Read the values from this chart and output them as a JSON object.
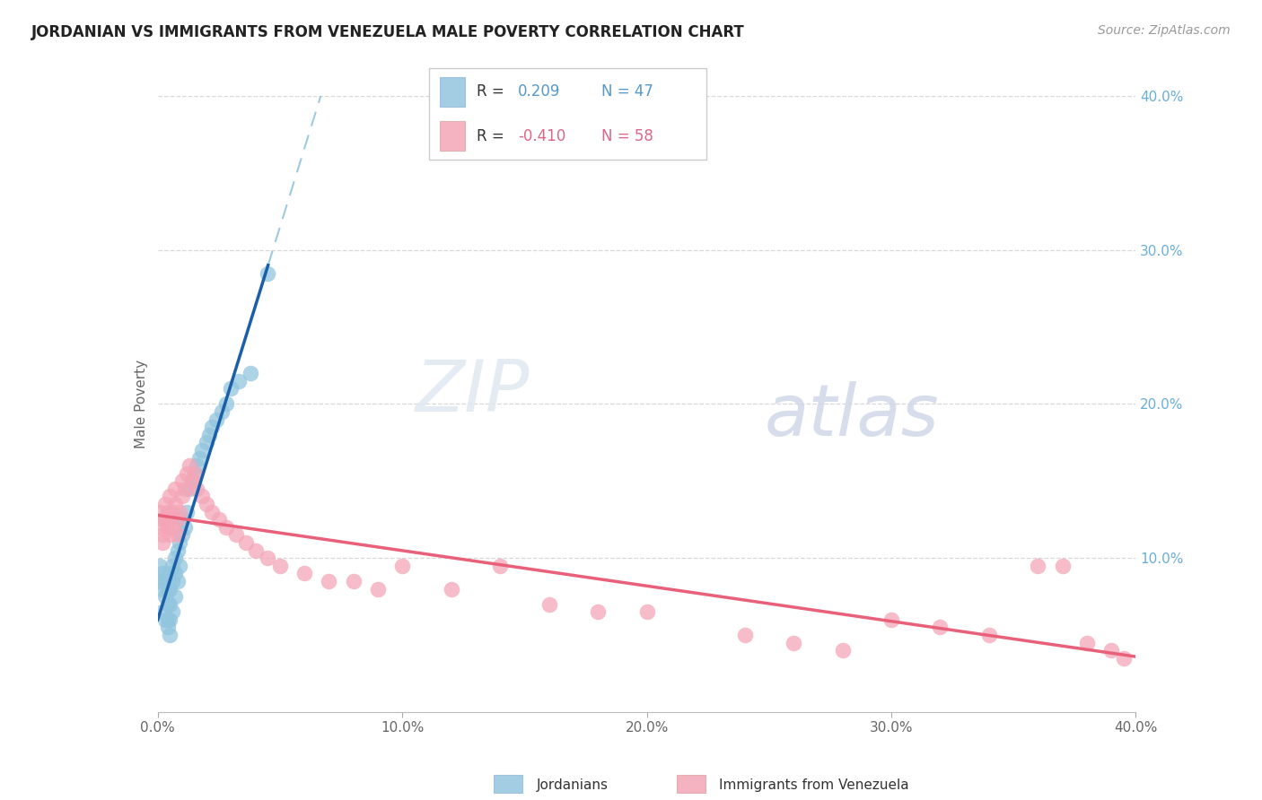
{
  "title": "JORDANIAN VS IMMIGRANTS FROM VENEZUELA MALE POVERTY CORRELATION CHART",
  "source": "Source: ZipAtlas.com",
  "ylabel": "Male Poverty",
  "right_yticks": [
    "40.0%",
    "30.0%",
    "20.0%",
    "10.0%"
  ],
  "right_ytick_vals": [
    0.4,
    0.3,
    0.2,
    0.1
  ],
  "x_tick_vals": [
    0.0,
    0.1,
    0.2,
    0.3,
    0.4
  ],
  "x_tick_labels": [
    "0.0%",
    "10.0%",
    "20.0%",
    "30.0%",
    "40.0%"
  ],
  "r_jordan": 0.209,
  "n_jordan": 47,
  "r_venezuela": -0.41,
  "n_venezuela": 58,
  "blue_color": "#92c5de",
  "pink_color": "#f4a6b8",
  "blue_line_color": "#1a5fa8",
  "pink_line_color": "#e8607a",
  "blue_dash_color": "#92c5de",
  "watermark": "ZIPatlas",
  "jordan_x": [
    0.001,
    0.001,
    0.002,
    0.002,
    0.002,
    0.003,
    0.003,
    0.003,
    0.004,
    0.004,
    0.004,
    0.004,
    0.005,
    0.005,
    0.005,
    0.005,
    0.005,
    0.006,
    0.006,
    0.006,
    0.007,
    0.007,
    0.007,
    0.008,
    0.008,
    0.009,
    0.009,
    0.01,
    0.01,
    0.011,
    0.012,
    0.013,
    0.014,
    0.015,
    0.016,
    0.017,
    0.018,
    0.02,
    0.021,
    0.022,
    0.024,
    0.026,
    0.028,
    0.03,
    0.033,
    0.038,
    0.045
  ],
  "jordan_y": [
    0.085,
    0.095,
    0.08,
    0.09,
    0.065,
    0.075,
    0.085,
    0.06,
    0.07,
    0.08,
    0.055,
    0.06,
    0.09,
    0.08,
    0.07,
    0.06,
    0.05,
    0.095,
    0.085,
    0.065,
    0.1,
    0.09,
    0.075,
    0.105,
    0.085,
    0.11,
    0.095,
    0.115,
    0.125,
    0.12,
    0.13,
    0.145,
    0.15,
    0.155,
    0.16,
    0.165,
    0.17,
    0.175,
    0.18,
    0.185,
    0.19,
    0.195,
    0.2,
    0.21,
    0.215,
    0.22,
    0.285
  ],
  "venezuela_x": [
    0.001,
    0.001,
    0.002,
    0.002,
    0.002,
    0.003,
    0.003,
    0.004,
    0.004,
    0.005,
    0.005,
    0.005,
    0.006,
    0.006,
    0.007,
    0.007,
    0.008,
    0.008,
    0.009,
    0.01,
    0.01,
    0.011,
    0.012,
    0.013,
    0.014,
    0.015,
    0.016,
    0.018,
    0.02,
    0.022,
    0.025,
    0.028,
    0.032,
    0.036,
    0.04,
    0.045,
    0.05,
    0.06,
    0.07,
    0.08,
    0.09,
    0.1,
    0.12,
    0.14,
    0.16,
    0.18,
    0.2,
    0.24,
    0.26,
    0.28,
    0.3,
    0.32,
    0.34,
    0.36,
    0.37,
    0.38,
    0.39,
    0.395
  ],
  "venezuela_y": [
    0.12,
    0.13,
    0.115,
    0.125,
    0.11,
    0.135,
    0.125,
    0.12,
    0.13,
    0.125,
    0.14,
    0.115,
    0.13,
    0.12,
    0.135,
    0.145,
    0.125,
    0.115,
    0.13,
    0.14,
    0.15,
    0.145,
    0.155,
    0.16,
    0.15,
    0.155,
    0.145,
    0.14,
    0.135,
    0.13,
    0.125,
    0.12,
    0.115,
    0.11,
    0.105,
    0.1,
    0.095,
    0.09,
    0.085,
    0.085,
    0.08,
    0.095,
    0.08,
    0.095,
    0.07,
    0.065,
    0.065,
    0.05,
    0.045,
    0.04,
    0.06,
    0.055,
    0.05,
    0.095,
    0.095,
    0.045,
    0.04,
    0.035
  ]
}
